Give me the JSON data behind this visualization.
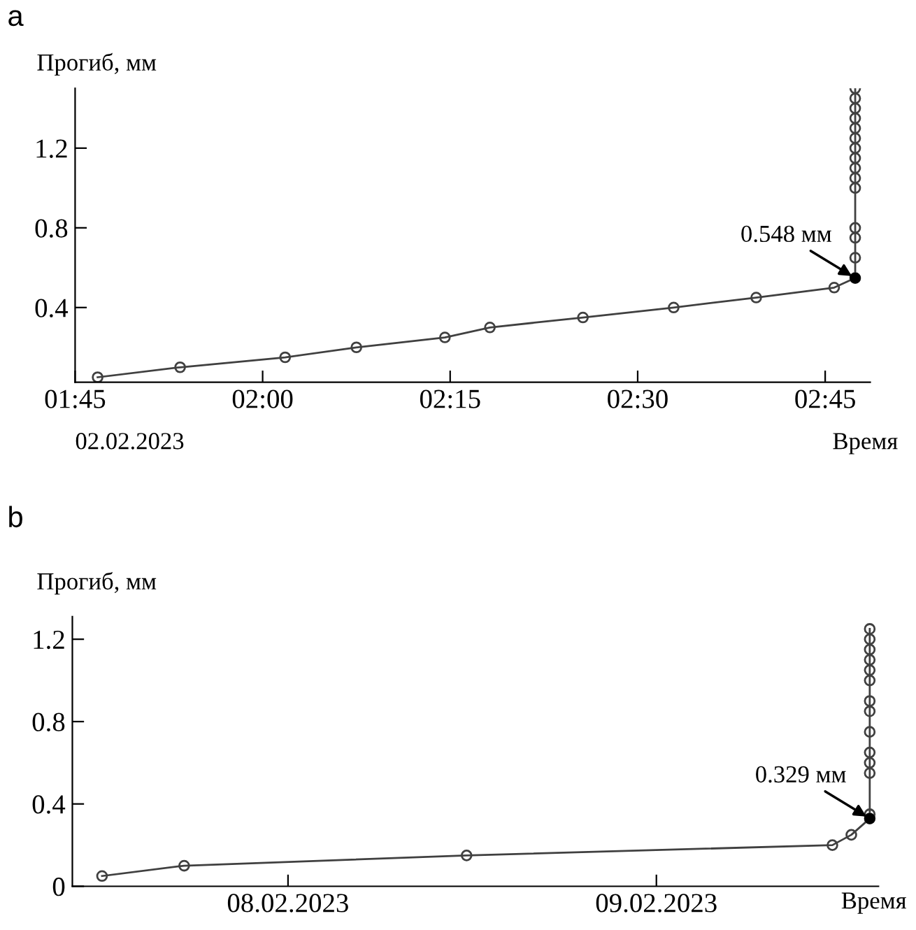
{
  "chart_data": [
    {
      "type": "line",
      "title": "a",
      "xlabel": "Время",
      "ylabel": "Прогиб, мм",
      "x": [
        1.78,
        1.89,
        2.03,
        2.125,
        2.243,
        2.303,
        2.427,
        2.548,
        2.658,
        2.762,
        2.79,
        2.79,
        2.79,
        2.79,
        2.79,
        2.79,
        2.79,
        2.79,
        2.79,
        2.79,
        2.79,
        2.79,
        2.79,
        2.79,
        2.79
      ],
      "series": [
        {
          "type": "line",
          "color": "#404040",
          "marker": "circle",
          "values": [
            0.05,
            0.1,
            0.15,
            0.2,
            0.25,
            0.3,
            0.35,
            0.4,
            0.45,
            0.5,
            0.548,
            0.65,
            0.75,
            0.8,
            1.0,
            1.05,
            1.1,
            1.15,
            1.2,
            1.25,
            1.3,
            1.35,
            1.4,
            1.45,
            1.5
          ]
        },
        {
          "type": "scatter",
          "color": "#000000",
          "marker": "circle",
          "x": [
            2.79
          ],
          "values": [
            0.548
          ]
        }
      ],
      "xlim": [
        1.75,
        2.81
      ],
      "ylim": [
        0.025,
        1.5
      ],
      "xticks": [
        {
          "value": 1.75,
          "label": "01:45"
        },
        {
          "value": 2.0,
          "label": "02:00"
        },
        {
          "value": 2.25,
          "label": "02:15"
        },
        {
          "value": 2.5,
          "label": "02:30"
        },
        {
          "value": 2.75,
          "label": "02:45"
        }
      ],
      "yticks": [
        0.4,
        0.8,
        1.2
      ],
      "annotations": [
        "02.02.2023",
        {
          "text": "0.548 мм",
          "x": 2.79,
          "y": 0.548
        }
      ]
    },
    {
      "type": "line",
      "title": "b",
      "xlabel": "Время",
      "ylabel": "Прогиб, мм",
      "x": [
        "2023-02-07T11:53",
        "2023-02-07T17:14",
        "2023-02-08T11:38",
        "2023-02-09T11:28",
        "2023-02-09T12:42",
        "2023-02-09T13:54",
        "2023-02-09T13:54",
        "2023-02-09T13:54",
        "2023-02-09T13:54",
        "2023-02-09T13:54",
        "2023-02-09T13:54",
        "2023-02-09T13:54",
        "2023-02-09T13:54",
        "2023-02-09T13:54",
        "2023-02-09T13:54",
        "2023-02-09T13:54",
        "2023-02-09T13:54",
        "2023-02-09T13:54",
        "2023-02-09T13:54"
      ],
      "series": [
        {
          "type": "line",
          "color": "#404040",
          "marker": "circle",
          "values": [
            0.05,
            0.1,
            0.15,
            0.2,
            0.25,
            0.329,
            0.35,
            0.55,
            0.6,
            0.65,
            0.75,
            0.85,
            0.9,
            1.0,
            1.05,
            1.1,
            1.15,
            1.2,
            1.25
          ]
        },
        {
          "type": "scatter",
          "color": "#000000",
          "marker": "circle",
          "x": [
            "2023-02-09T13:54"
          ],
          "values": [
            0.329
          ]
        }
      ],
      "xlim": [
        "2023-02-07T09:57",
        "2023-02-09T14:28"
      ],
      "ylim": [
        0,
        1.31
      ],
      "xticks": [
        {
          "value": "2023-02-08",
          "label": "08.02.2023"
        },
        {
          "value": "2023-02-09",
          "label": "09.02.2023"
        }
      ],
      "yticks": [
        0,
        0.4,
        0.8,
        1.2
      ],
      "annotations": [
        {
          "text": "0.329 мм",
          "x": "2023-02-09T13:54",
          "y": 0.329
        }
      ]
    }
  ]
}
